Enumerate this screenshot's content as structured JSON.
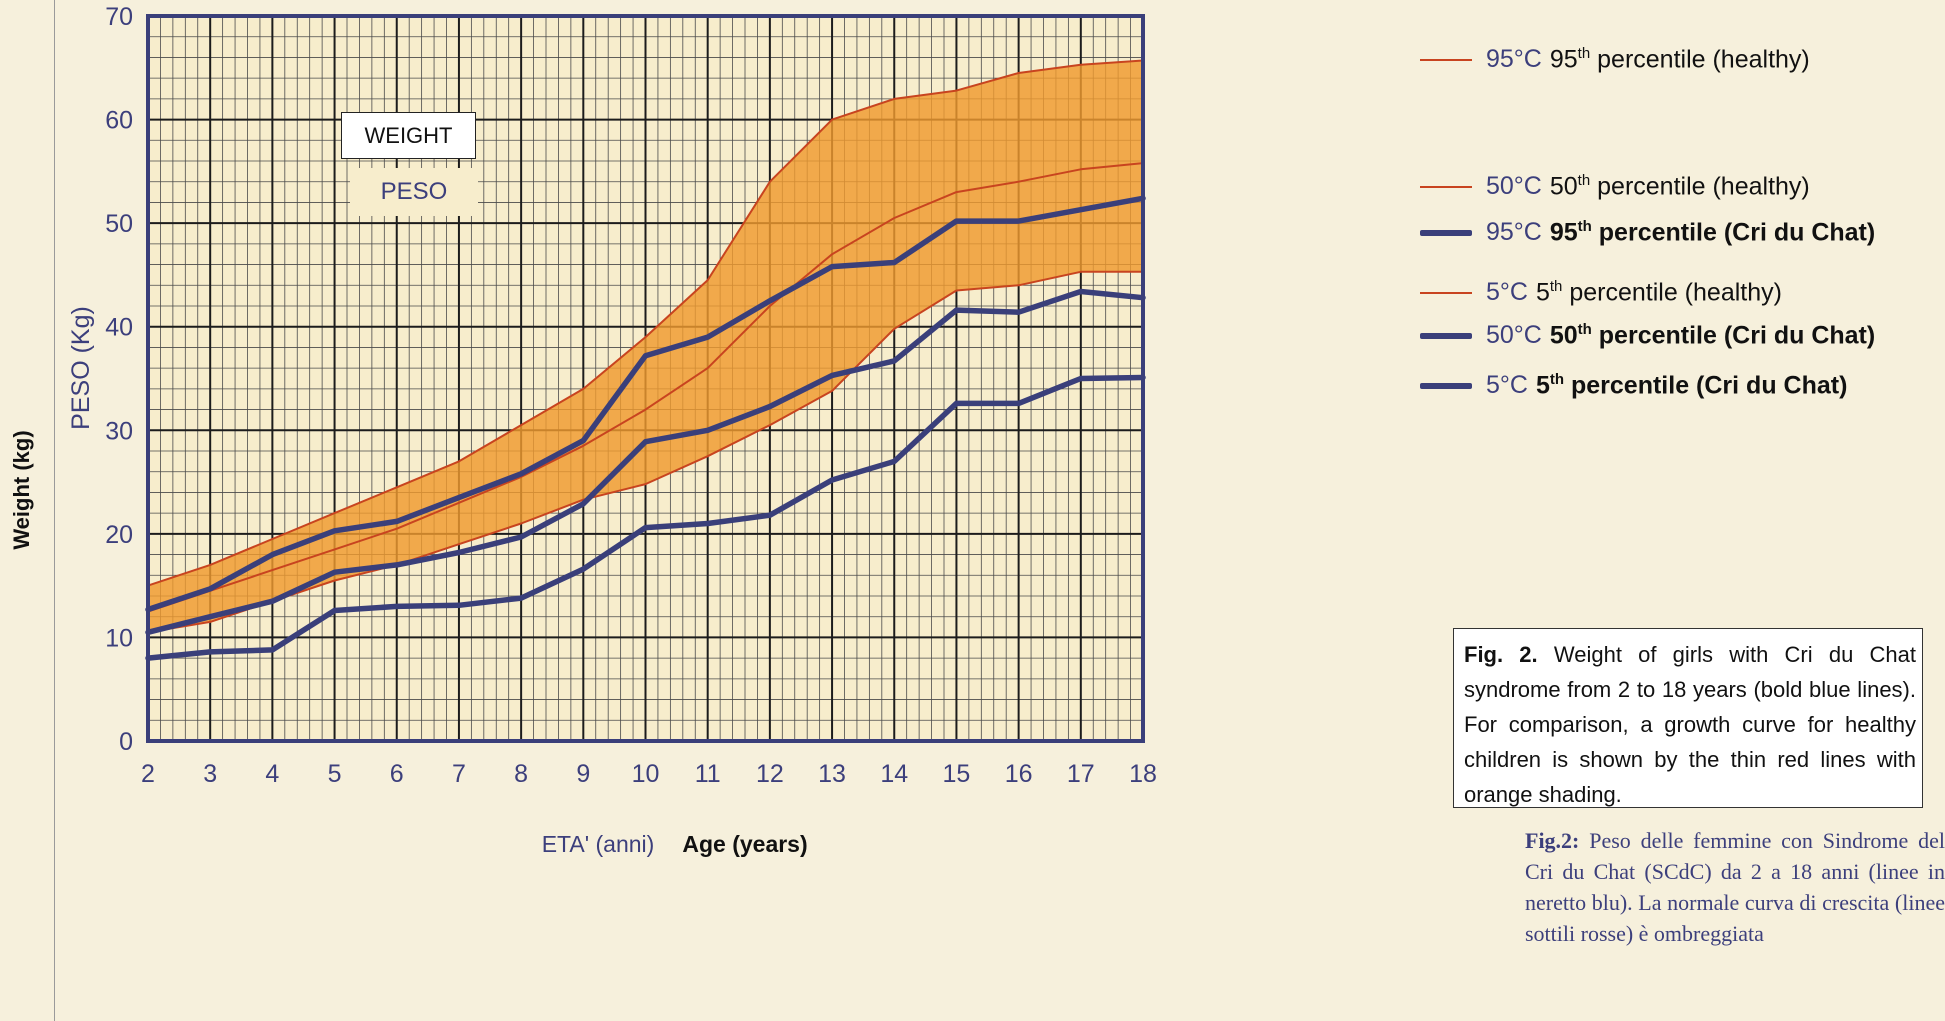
{
  "left_axis_label": "Weight (kg)",
  "weight_box": "WEIGHT",
  "peso_box": "PESO",
  "legend": [
    {
      "code": "95°C",
      "pct": "95",
      "sup": "th",
      "text": " percentile (healthy)",
      "style": "thin",
      "bold": false
    },
    {
      "code": "50°C",
      "pct": "50",
      "sup": "th",
      "text": " percentile (healthy)",
      "style": "thin",
      "bold": false
    },
    {
      "code": "95°C",
      "pct": "95",
      "sup": "th",
      "text": " percentile (Cri du Chat)",
      "style": "thick",
      "bold": true
    },
    {
      "code": "5°C",
      "pct": "5",
      "sup": "th",
      "text": " percentile (healthy)",
      "style": "thin",
      "bold": false
    },
    {
      "code": "50°C",
      "pct": "50",
      "sup": "th",
      "text": " percentile (Cri du Chat)",
      "style": "thick",
      "bold": true
    },
    {
      "code": "5°C",
      "pct": "5",
      "sup": "th",
      "text": " percentile (Cri du Chat)",
      "style": "thick",
      "bold": true
    }
  ],
  "caption": {
    "label": "Fig. 2.",
    "text": " Weight of girls with Cri du Chat syndrome from 2 to 18 years (bold blue lines). For comparison, a growth curve for healthy children is shown by the thin red lines with orange shading."
  },
  "italian_caption": {
    "label": "Fig.2:",
    "text": " Peso delle femmine con Sindrome del Cri du Chat (SCdC) da 2 a 18 anni (linee in neretto blu). La normale curva di crescita (linee sottili rosse) è ombreggiata"
  },
  "colors": {
    "background": "#f6f0dc",
    "plot_background": "#f7edcc",
    "grid_major": "#1c1c1c",
    "grid_minor": "#4a4a4a",
    "frame": "#3a3f7a",
    "band_fill": "#ef9a2e",
    "healthy_line": "#c8441f",
    "cdc_line": "#3a3f7a",
    "axis_text": "#3c3f7c"
  },
  "chart_data": {
    "type": "line",
    "title": "",
    "xlabel": "ETA' (anni)",
    "xlabel_en": "Age (years)",
    "ylabel": "PESO (Kg)",
    "xlim": [
      2,
      18
    ],
    "ylim": [
      0,
      70
    ],
    "x_ticks": [
      2,
      3,
      4,
      5,
      6,
      7,
      8,
      9,
      10,
      11,
      12,
      13,
      14,
      15,
      16,
      17,
      18
    ],
    "y_ticks": [
      0,
      10,
      20,
      30,
      40,
      50,
      60,
      70
    ],
    "grid": true,
    "legend_position": "right",
    "shaded_band": {
      "between": [
        "95th percentile (healthy)",
        "5th percentile (healthy)"
      ]
    },
    "x": [
      2,
      3,
      4,
      5,
      6,
      7,
      8,
      9,
      10,
      11,
      12,
      13,
      14,
      15,
      16,
      17,
      18
    ],
    "series": [
      {
        "name": "95th percentile (healthy)",
        "style": "thin",
        "values": [
          15.0,
          17.0,
          19.5,
          22.0,
          24.5,
          27.0,
          30.5,
          34.0,
          39.0,
          44.5,
          54.0,
          60.0,
          62.0,
          62.8,
          64.5,
          65.3,
          65.7
        ]
      },
      {
        "name": "50th percentile (healthy)",
        "style": "thin",
        "values": [
          12.5,
          14.5,
          16.5,
          18.5,
          20.5,
          23.0,
          25.5,
          28.5,
          32.0,
          36.0,
          42.0,
          47.0,
          50.5,
          53.0,
          54.0,
          55.2,
          55.8
        ]
      },
      {
        "name": "95th percentile (Cri du Chat)",
        "style": "thick",
        "values": [
          12.7,
          14.7,
          18.0,
          20.3,
          21.2,
          23.5,
          25.8,
          29.0,
          37.2,
          39.0,
          42.5,
          45.8,
          46.2,
          50.2,
          50.2,
          51.3,
          52.4
        ]
      },
      {
        "name": "5th percentile (healthy)",
        "style": "thin",
        "values": [
          10.5,
          11.5,
          13.5,
          15.5,
          17.0,
          19.0,
          21.0,
          23.3,
          24.8,
          27.5,
          30.5,
          33.8,
          39.8,
          43.5,
          44.0,
          45.3,
          45.3
        ]
      },
      {
        "name": "50th percentile (Cri du Chat)",
        "style": "thick",
        "values": [
          10.5,
          12.0,
          13.5,
          16.3,
          17.0,
          18.2,
          19.7,
          22.9,
          28.9,
          30.0,
          32.3,
          35.3,
          36.7,
          41.6,
          41.4,
          43.4,
          42.8
        ]
      },
      {
        "name": "5th percentile (Cri du Chat)",
        "style": "thick",
        "values": [
          8.0,
          8.6,
          8.8,
          12.6,
          13.0,
          13.1,
          13.8,
          16.6,
          20.6,
          21.0,
          21.8,
          25.2,
          27.0,
          32.6,
          32.6,
          35.0,
          35.1
        ]
      }
    ]
  }
}
